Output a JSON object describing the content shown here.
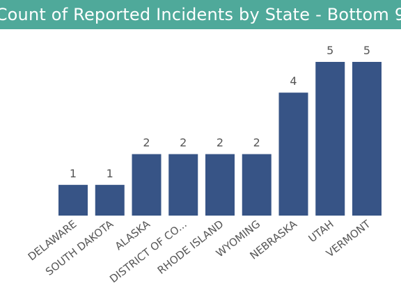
{
  "chart_data": {
    "type": "bar",
    "title": "Count of Reported Incidents by State - Bottom 9",
    "categories": [
      "DELAWARE",
      "SOUTH DAKOTA",
      "ALASKA",
      "DISTRICT OF CO...",
      "RHODE ISLAND",
      "WYOMING",
      "NEBRASKA",
      "UTAH",
      "VERMONT"
    ],
    "values": [
      1,
      1,
      2,
      2,
      2,
      2,
      4,
      5,
      5
    ],
    "xlabel": "",
    "ylabel": "",
    "ylim": [
      0,
      5
    ],
    "grid": false,
    "legend": "none",
    "data_labels": true,
    "colors": {
      "title_background": "#4fa99a",
      "title_text": "#ffffff",
      "bar": "#375486",
      "label_text": "#555555"
    }
  }
}
